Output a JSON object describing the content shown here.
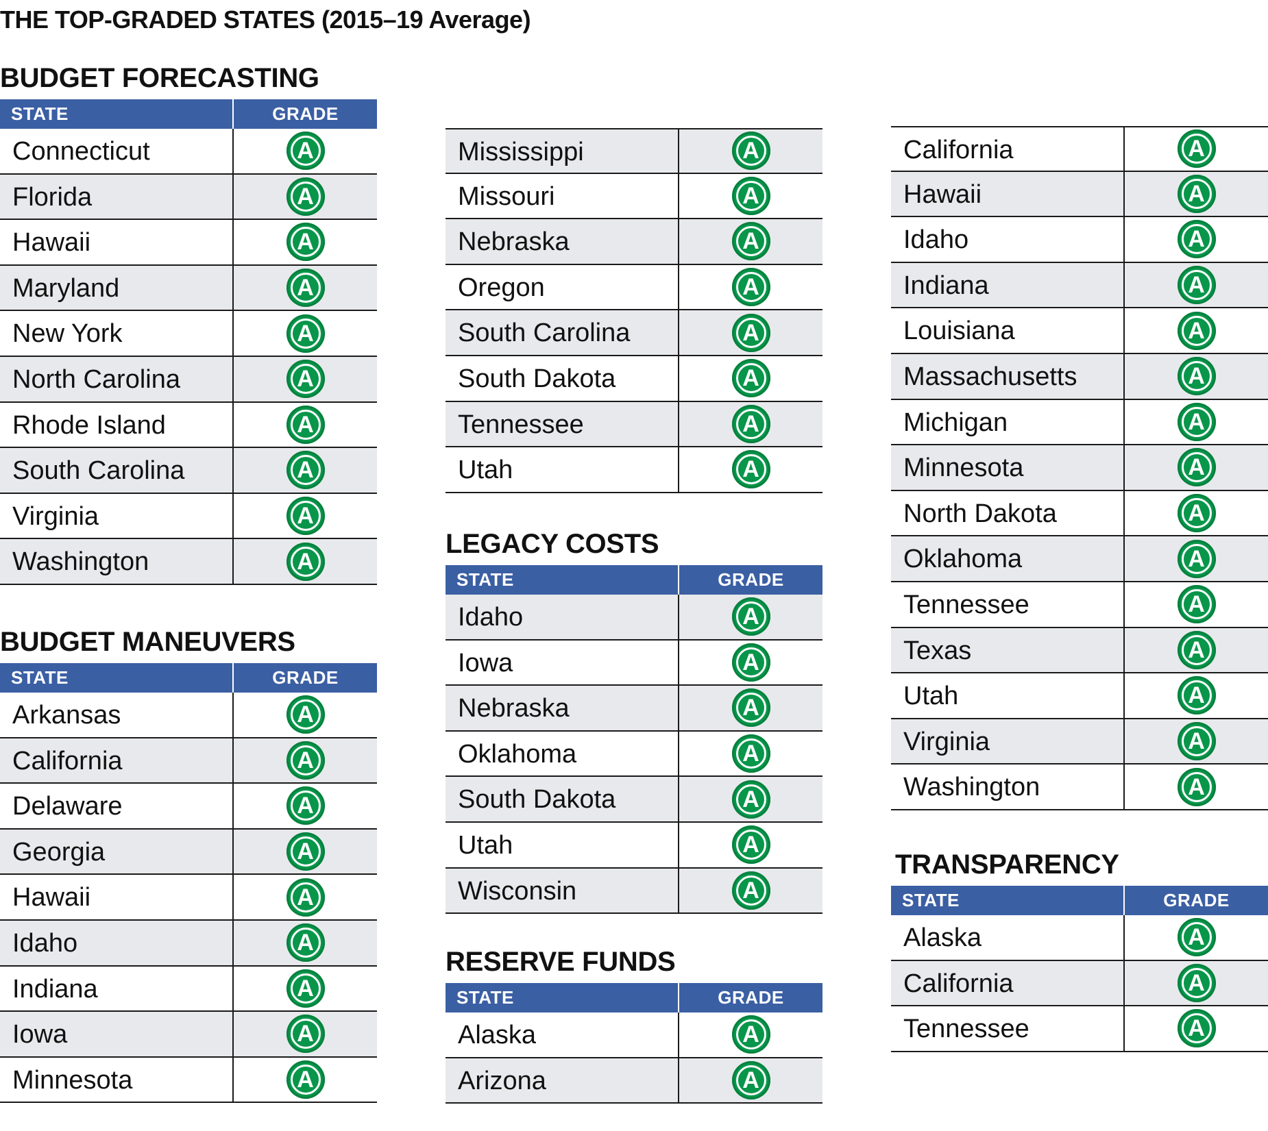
{
  "title": "THE TOP-GRADED STATES (2015–19 Average)",
  "header_labels": {
    "state": "STATE",
    "grade": "GRADE"
  },
  "sections": [
    {
      "title": "BUDGET FORECASTING",
      "rows": [
        {
          "state": "Connecticut",
          "grade": "A"
        },
        {
          "state": "Florida",
          "grade": "A"
        },
        {
          "state": "Hawaii",
          "grade": "A"
        },
        {
          "state": "Maryland",
          "grade": "A"
        },
        {
          "state": "New York",
          "grade": "A"
        },
        {
          "state": "North Carolina",
          "grade": "A"
        },
        {
          "state": "Rhode Island",
          "grade": "A"
        },
        {
          "state": "South Carolina",
          "grade": "A"
        },
        {
          "state": "Virginia",
          "grade": "A"
        },
        {
          "state": "Washington",
          "grade": "A"
        }
      ]
    },
    {
      "title": "BUDGET MANEUVERS",
      "rows": [
        {
          "state": "Arkansas",
          "grade": "A"
        },
        {
          "state": "California",
          "grade": "A"
        },
        {
          "state": "Delaware",
          "grade": "A"
        },
        {
          "state": "Georgia",
          "grade": "A"
        },
        {
          "state": "Hawaii",
          "grade": "A"
        },
        {
          "state": "Idaho",
          "grade": "A"
        },
        {
          "state": "Indiana",
          "grade": "A"
        },
        {
          "state": "Iowa",
          "grade": "A"
        },
        {
          "state": "Minnesota",
          "grade": "A"
        },
        {
          "state": "Mississippi",
          "grade": "A"
        },
        {
          "state": "Missouri",
          "grade": "A"
        },
        {
          "state": "Nebraska",
          "grade": "A"
        },
        {
          "state": "Oregon",
          "grade": "A"
        },
        {
          "state": "South Carolina",
          "grade": "A"
        },
        {
          "state": "South Dakota",
          "grade": "A"
        },
        {
          "state": "Tennessee",
          "grade": "A"
        },
        {
          "state": "Utah",
          "grade": "A"
        }
      ]
    },
    {
      "title": "LEGACY COSTS",
      "rows": [
        {
          "state": "Idaho",
          "grade": "A"
        },
        {
          "state": "Iowa",
          "grade": "A"
        },
        {
          "state": "Nebraska",
          "grade": "A"
        },
        {
          "state": "Oklahoma",
          "grade": "A"
        },
        {
          "state": "South Dakota",
          "grade": "A"
        },
        {
          "state": "Utah",
          "grade": "A"
        },
        {
          "state": "Wisconsin",
          "grade": "A"
        }
      ]
    },
    {
      "title": "RESERVE FUNDS",
      "rows": [
        {
          "state": "Alaska",
          "grade": "A"
        },
        {
          "state": "Arizona",
          "grade": "A"
        },
        {
          "state": "California",
          "grade": "A"
        },
        {
          "state": "Hawaii",
          "grade": "A"
        },
        {
          "state": "Idaho",
          "grade": "A"
        },
        {
          "state": "Indiana",
          "grade": "A"
        },
        {
          "state": "Louisiana",
          "grade": "A"
        },
        {
          "state": "Massachusetts",
          "grade": "A"
        },
        {
          "state": "Michigan",
          "grade": "A"
        },
        {
          "state": "Minnesota",
          "grade": "A"
        },
        {
          "state": "North Dakota",
          "grade": "A"
        },
        {
          "state": "Oklahoma",
          "grade": "A"
        },
        {
          "state": "Tennessee",
          "grade": "A"
        },
        {
          "state": "Texas",
          "grade": "A"
        },
        {
          "state": "Utah",
          "grade": "A"
        },
        {
          "state": "Virginia",
          "grade": "A"
        },
        {
          "state": "Washington",
          "grade": "A"
        }
      ]
    },
    {
      "title": "TRANSPARENCY",
      "rows": [
        {
          "state": "Alaska",
          "grade": "A"
        },
        {
          "state": "California",
          "grade": "A"
        },
        {
          "state": "Tennessee",
          "grade": "A"
        }
      ]
    }
  ]
}
